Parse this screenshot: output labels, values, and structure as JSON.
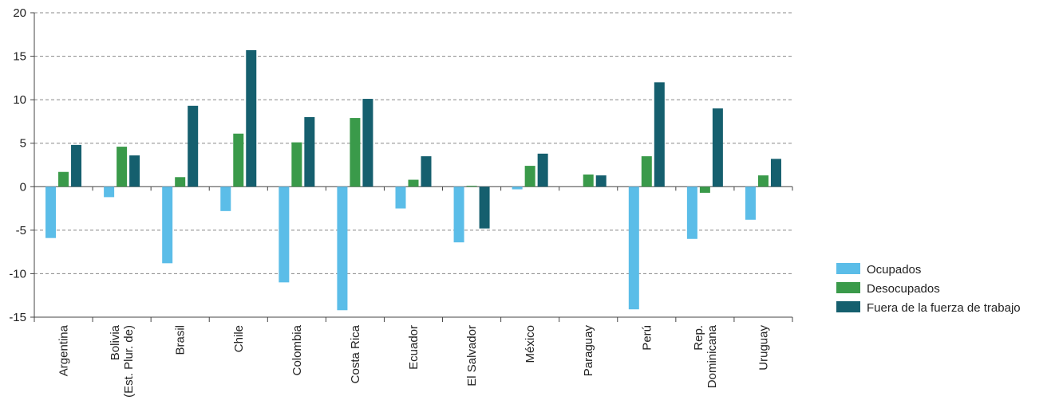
{
  "chart_data": {
    "type": "bar",
    "categories": [
      [
        "Argentina"
      ],
      [
        "Bolivia",
        "(Est. Plur. de)"
      ],
      [
        "Brasil"
      ],
      [
        "Chile"
      ],
      [
        "Colombia"
      ],
      [
        "Costa Rica"
      ],
      [
        "Ecuador"
      ],
      [
        "El Salvador"
      ],
      [
        "México"
      ],
      [
        "Paraguay"
      ],
      [
        "Perú"
      ],
      [
        "Rep.",
        "Dominicana"
      ],
      [
        "Uruguay"
      ]
    ],
    "series": [
      {
        "name": "Ocupados",
        "color": "#5bbde8",
        "values": [
          -5.9,
          -1.2,
          -8.8,
          -2.8,
          -11.0,
          -14.2,
          -2.5,
          -6.4,
          -0.3,
          0,
          -14.1,
          -6.0,
          -3.8
        ]
      },
      {
        "name": "Desocupados",
        "color": "#3a9a4a",
        "values": [
          1.7,
          4.6,
          1.1,
          6.1,
          5.1,
          7.9,
          0.8,
          0.1,
          2.4,
          1.4,
          3.5,
          -0.7,
          1.3
        ]
      },
      {
        "name": "Fuera de la fuerza de trabajo",
        "color": "#155f6e",
        "values": [
          4.8,
          3.6,
          9.3,
          15.7,
          8.0,
          10.1,
          3.5,
          -4.8,
          3.8,
          1.3,
          12.0,
          9.0,
          3.2
        ]
      }
    ],
    "ylim": [
      -15,
      20
    ],
    "yticks": [
      -15,
      -10,
      -5,
      0,
      5,
      10,
      15,
      20
    ],
    "grid": true,
    "legend": "right"
  }
}
